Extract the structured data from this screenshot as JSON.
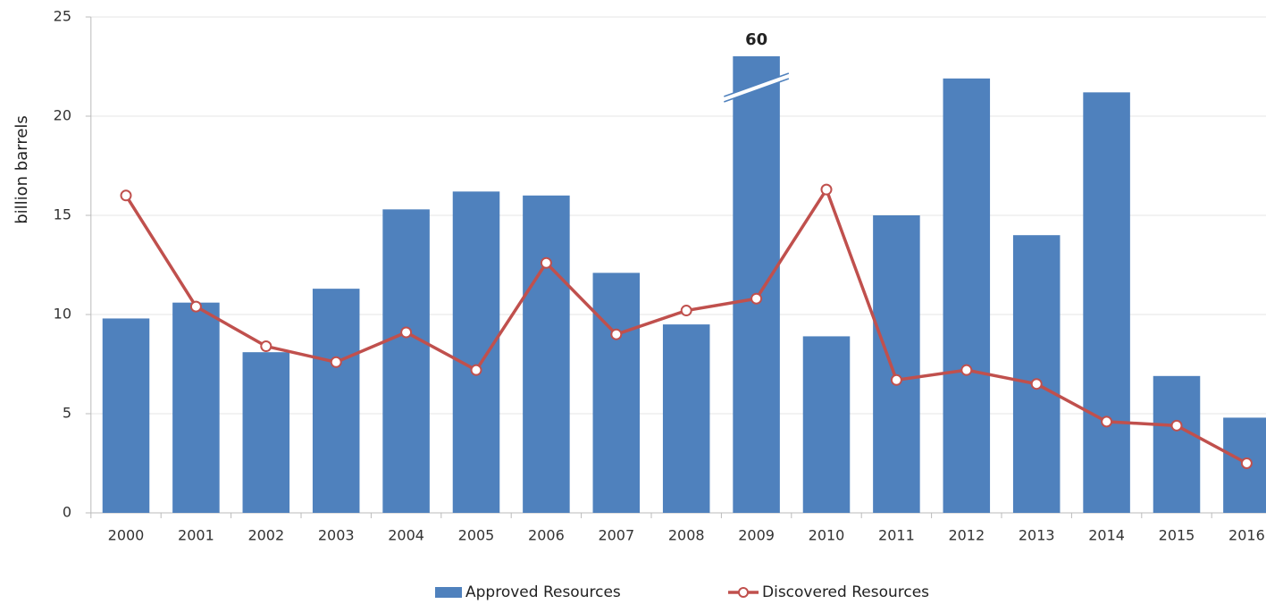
{
  "chart_data": {
    "type": "bar-line",
    "y_label": "billion barrels",
    "categories": [
      "2000",
      "2001",
      "2002",
      "2003",
      "2004",
      "2005",
      "2006",
      "2007",
      "2008",
      "2009",
      "2010",
      "2011",
      "2012",
      "2013",
      "2014",
      "2015",
      "2016"
    ],
    "series": [
      {
        "name": "Approved Resources",
        "type": "bar",
        "color": "#4f81bd",
        "values": [
          9.8,
          10.6,
          8.1,
          11.3,
          15.3,
          16.2,
          16.0,
          12.1,
          9.5,
          60,
          8.9,
          15.0,
          21.9,
          14.0,
          21.2,
          6.9,
          4.8
        ],
        "value_labels": [
          null,
          null,
          null,
          null,
          null,
          null,
          null,
          null,
          null,
          "60",
          null,
          null,
          null,
          null,
          null,
          null,
          null
        ]
      },
      {
        "name": "Discovered Resources",
        "type": "line",
        "color": "#c0504d",
        "values": [
          16.0,
          10.4,
          8.4,
          7.6,
          9.1,
          7.2,
          12.6,
          9.0,
          10.2,
          10.8,
          16.3,
          6.7,
          7.2,
          6.5,
          4.6,
          4.4,
          2.5
        ]
      }
    ],
    "ylim": [
      0,
      25
    ],
    "yticks": [
      0,
      5,
      10,
      15,
      20,
      25
    ],
    "grid": true,
    "legend": "bottom"
  }
}
